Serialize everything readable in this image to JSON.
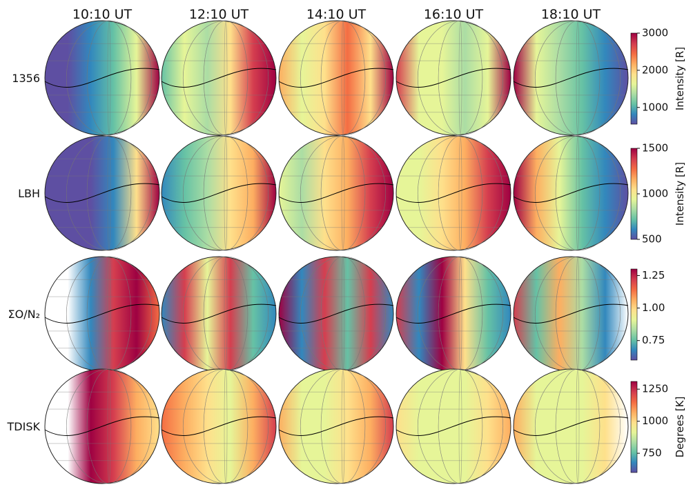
{
  "columns": [
    "10:10 UT",
    "12:10 UT",
    "14:10 UT",
    "16:10 UT",
    "18:10 UT"
  ],
  "rows": [
    {
      "label": "1356",
      "colorbar": {
        "label": "Intensity [R]",
        "lim": [
          550,
          3000
        ],
        "ticks": [
          1000,
          2000,
          3000
        ]
      }
    },
    {
      "label": "LBH",
      "colorbar": {
        "label": "Intensity [R]",
        "lim": [
          500,
          1500
        ],
        "ticks": [
          500,
          1000,
          1500
        ]
      }
    },
    {
      "label": "ΣO/N₂",
      "colorbar": {
        "lim": [
          0.6,
          1.3
        ],
        "ticks": [
          0.75,
          {
            "value": 1,
            "label": "1.00"
          },
          1.25
        ]
      }
    },
    {
      "label": "TDISK",
      "colorbar": {
        "label": "Degrees [K]",
        "lim": [
          600,
          1310
        ],
        "ticks": [
          750,
          1000,
          1250
        ]
      }
    }
  ]
}
